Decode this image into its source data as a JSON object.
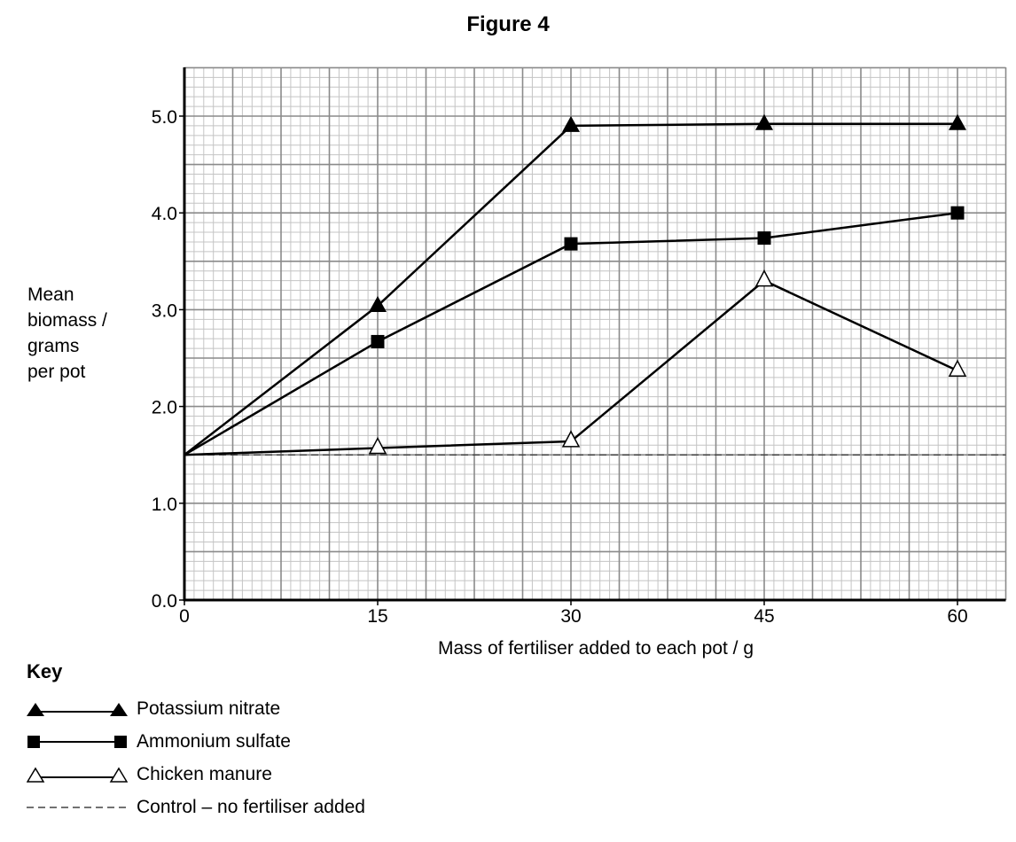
{
  "figure": {
    "title": "Figure 4"
  },
  "chart_data": {
    "type": "line",
    "title": "Figure 4",
    "xlabel": "Mass of fertiliser added to each pot / g",
    "ylabel": "Mean biomass / grams per pot",
    "ylabel_lines": [
      "Mean",
      "biomass /",
      "grams",
      "per pot"
    ],
    "x": [
      0,
      15,
      30,
      45,
      60
    ],
    "x_ticks": [
      "0",
      "15",
      "30",
      "45",
      "60"
    ],
    "y_ticks": [
      "0.0",
      "1.0",
      "2.0",
      "3.0",
      "4.0",
      "5.0"
    ],
    "xlim": [
      0,
      63.75
    ],
    "ylim": [
      0,
      5.5
    ],
    "grid": true,
    "legend_position": "below-left",
    "series": [
      {
        "name": "Potassium nitrate",
        "marker": "filled-triangle",
        "values": [
          1.5,
          3.04,
          4.9,
          4.92,
          4.92
        ]
      },
      {
        "name": "Ammonium sulfate",
        "marker": "filled-square",
        "values": [
          1.5,
          2.67,
          3.68,
          3.74,
          4.0
        ]
      },
      {
        "name": "Chicken manure",
        "marker": "open-triangle",
        "values": [
          1.5,
          1.57,
          1.64,
          3.3,
          2.37
        ]
      },
      {
        "name": "Control – no fertiliser added",
        "marker": "none",
        "style": "dashed",
        "values": [
          1.5,
          1.5,
          1.5,
          1.5,
          1.5
        ]
      }
    ]
  },
  "legend": {
    "title": "Key",
    "items": [
      {
        "label": "Potassium nitrate"
      },
      {
        "label": "Ammonium sulfate"
      },
      {
        "label": "Chicken manure"
      },
      {
        "label": "Control – no fertiliser added"
      }
    ]
  }
}
